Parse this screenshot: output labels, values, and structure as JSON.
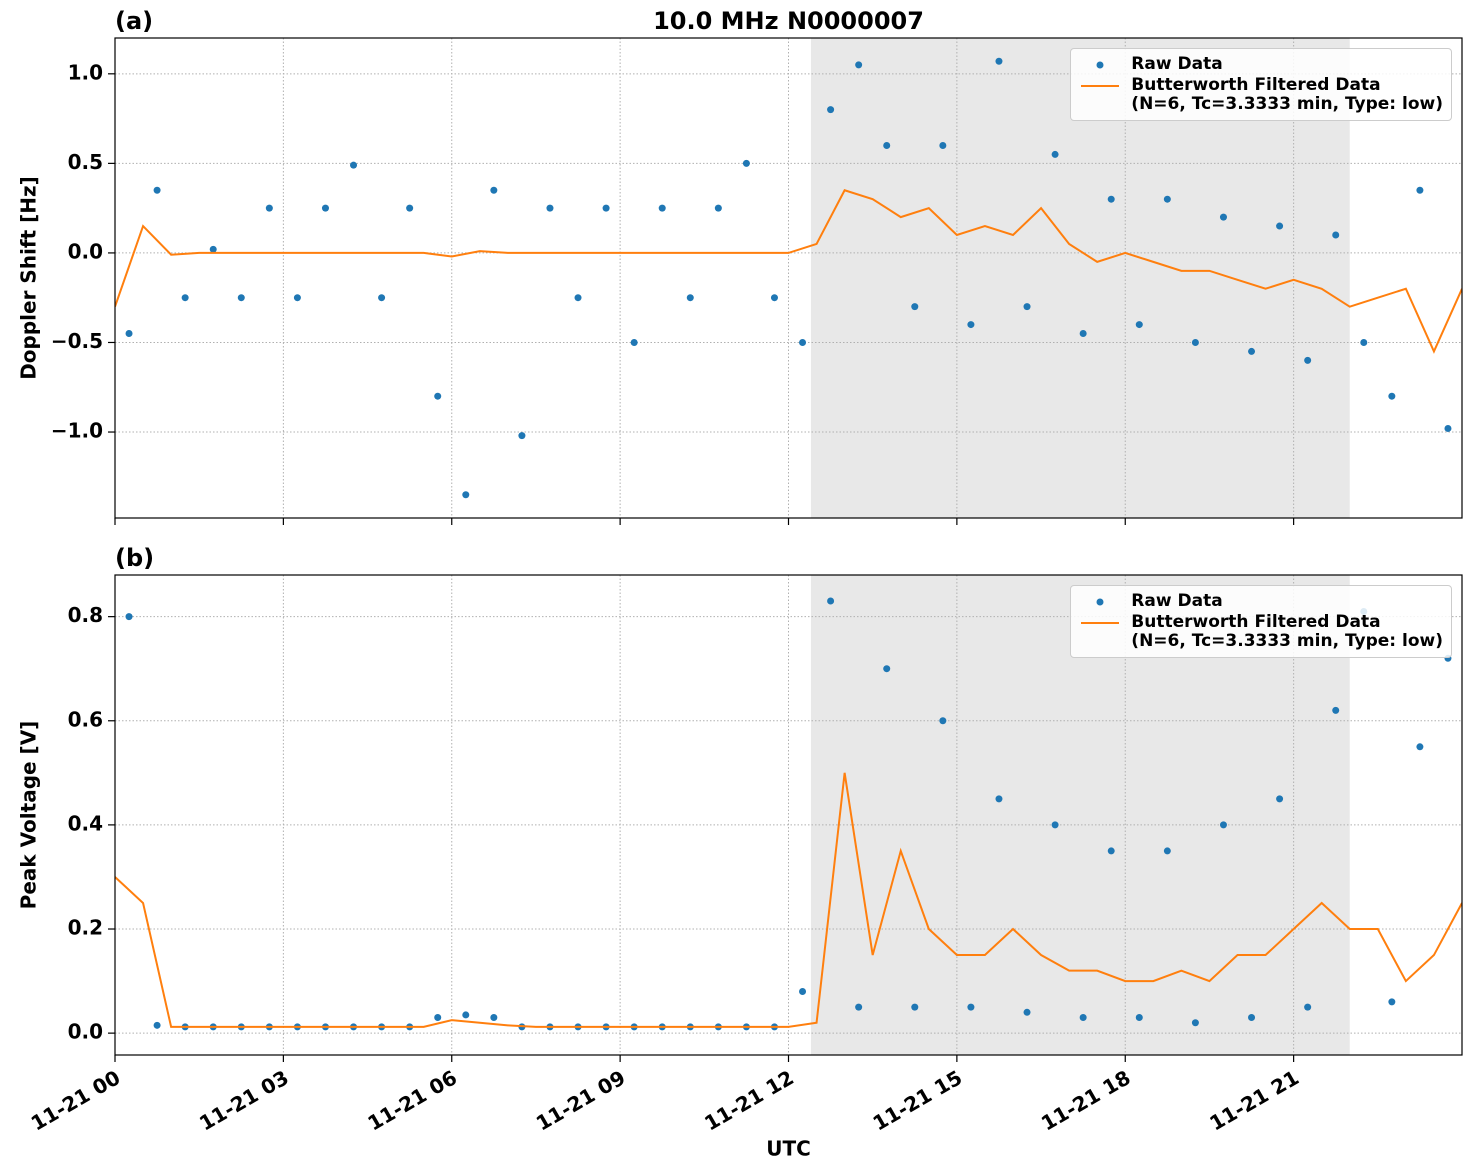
{
  "chart_data": [
    {
      "type": "line",
      "title": "10.0 MHz N0000007",
      "panel_label": "(a)",
      "y_label": "Doppler Shift [Hz]",
      "xlim": [
        0,
        24
      ],
      "xticks": [
        0,
        3,
        6,
        9,
        12,
        15,
        18,
        21
      ],
      "ylim": [
        -1.48,
        1.2
      ],
      "yticks": [
        {
          "value": 1,
          "label": "1.0"
        },
        {
          "value": 0.5,
          "label": "0.5"
        },
        {
          "value": 0,
          "label": "0.0"
        },
        {
          "value": -0.5,
          "label": "−0.5"
        },
        {
          "value": -1,
          "label": "−1.0"
        }
      ],
      "grid": true,
      "legend": "upper right",
      "shaded_span": [
        12.4,
        22.0
      ],
      "span_color": "#e8e8e8",
      "series": [
        {
          "name": "Raw Data",
          "type": "scatter",
          "color": "#1f77b4",
          "x": [
            0.25,
            0.75,
            1.25,
            1.75,
            2.25,
            2.75,
            3.25,
            3.75,
            4.25,
            4.75,
            5.25,
            5.75,
            6.25,
            6.75,
            7.25,
            7.75,
            8.25,
            8.75,
            9.25,
            9.75,
            10.25,
            10.75,
            11.25,
            11.75,
            12.25,
            12.75,
            13.25,
            13.75,
            14.25,
            14.75,
            15.25,
            15.75,
            16.25,
            16.75,
            17.25,
            17.75,
            18.25,
            18.75,
            19.25,
            19.75,
            20.25,
            20.75,
            21.25,
            21.75,
            22.25,
            22.75,
            23.25,
            23.75
          ],
          "values": [
            -0.45,
            0.35,
            -0.25,
            0.02,
            -0.25,
            0.25,
            -0.25,
            0.25,
            0.49,
            -0.25,
            0.25,
            -0.8,
            -1.35,
            0.35,
            -1.02,
            0.25,
            -0.25,
            0.25,
            -0.5,
            0.25,
            -0.25,
            0.25,
            0.5,
            -0.25,
            -0.5,
            0.8,
            1.05,
            0.6,
            -0.3,
            0.6,
            -0.4,
            1.07,
            -0.3,
            0.55,
            -0.45,
            0.3,
            -0.4,
            0.3,
            -0.5,
            0.2,
            -0.55,
            0.15,
            -0.6,
            0.1,
            -0.5,
            -0.8,
            0.35,
            -0.98
          ]
        },
        {
          "name": "Butterworth Filtered Data\n(N=6, Tc=3.3333 min, Type: low)",
          "type": "line",
          "color": "#ff7f0e",
          "x": [
            0,
            0.5,
            1,
            1.5,
            2,
            2.5,
            3,
            3.5,
            4,
            4.5,
            5,
            5.5,
            6,
            6.5,
            7,
            7.5,
            8,
            8.5,
            9,
            9.5,
            10,
            10.5,
            11,
            11.5,
            12,
            12.5,
            13,
            13.5,
            14,
            14.5,
            15,
            15.5,
            16,
            16.5,
            17,
            17.5,
            18,
            18.5,
            19,
            19.5,
            20,
            20.5,
            21,
            21.5,
            22,
            22.5,
            23,
            23.5,
            24
          ],
          "values": [
            -0.3,
            0.15,
            -0.01,
            0,
            0,
            0,
            0,
            0,
            0,
            0,
            0,
            0,
            -0.02,
            0.01,
            0,
            0,
            0,
            0,
            0,
            0,
            0,
            0,
            0,
            0,
            0,
            0.05,
            0.35,
            0.3,
            0.2,
            0.25,
            0.1,
            0.15,
            0.1,
            0.25,
            0.05,
            -0.05,
            0,
            -0.05,
            -0.1,
            -0.1,
            -0.15,
            -0.2,
            -0.15,
            -0.2,
            -0.3,
            -0.25,
            -0.2,
            -0.55,
            -0.2
          ]
        }
      ]
    },
    {
      "type": "line",
      "panel_label": "(b)",
      "y_label": "Peak Voltage [V]",
      "x_label": "UTC",
      "xlim": [
        0,
        24
      ],
      "xticks": [
        {
          "value": 0,
          "label": "11-21 00"
        },
        {
          "value": 3,
          "label": "11-21 03"
        },
        {
          "value": 6,
          "label": "11-21 06"
        },
        {
          "value": 9,
          "label": "11-21 09"
        },
        {
          "value": 12,
          "label": "11-21 12"
        },
        {
          "value": 15,
          "label": "11-21 15"
        },
        {
          "value": 18,
          "label": "11-21 18"
        },
        {
          "value": 21,
          "label": "11-21 21"
        }
      ],
      "ylim": [
        -0.042,
        0.88
      ],
      "yticks": [
        {
          "value": 0,
          "label": "0.0"
        },
        {
          "value": 0.2,
          "label": "0.2"
        },
        {
          "value": 0.4,
          "label": "0.4"
        },
        {
          "value": 0.6,
          "label": "0.6"
        },
        {
          "value": 0.8,
          "label": "0.8"
        }
      ],
      "grid": true,
      "legend": "upper right",
      "shaded_span": [
        12.4,
        22.0
      ],
      "span_color": "#e8e8e8",
      "series": [
        {
          "name": "Raw Data",
          "type": "scatter",
          "color": "#1f77b4",
          "x": [
            0.25,
            0.75,
            1.25,
            1.75,
            2.25,
            2.75,
            3.25,
            3.75,
            4.25,
            4.75,
            5.25,
            5.75,
            6.25,
            6.75,
            7.25,
            7.75,
            8.25,
            8.75,
            9.25,
            9.75,
            10.25,
            10.75,
            11.25,
            11.75,
            12.25,
            12.75,
            13.25,
            13.75,
            14.25,
            14.75,
            15.25,
            15.75,
            16.25,
            16.75,
            17.25,
            17.75,
            18.25,
            18.75,
            19.25,
            19.75,
            20.25,
            20.75,
            21.25,
            21.75,
            22.25,
            22.75,
            23.25,
            23.75
          ],
          "values": [
            0.8,
            0.015,
            0.012,
            0.012,
            0.012,
            0.012,
            0.012,
            0.012,
            0.012,
            0.012,
            0.012,
            0.03,
            0.035,
            0.03,
            0.012,
            0.012,
            0.012,
            0.012,
            0.012,
            0.012,
            0.012,
            0.012,
            0.012,
            0.012,
            0.08,
            0.83,
            0.05,
            0.7,
            0.05,
            0.6,
            0.05,
            0.45,
            0.04,
            0.4,
            0.03,
            0.35,
            0.03,
            0.35,
            0.02,
            0.4,
            0.03,
            0.45,
            0.05,
            0.62,
            0.81,
            0.06,
            0.55,
            0.72
          ]
        },
        {
          "name": "Butterworth Filtered Data\n(N=6, Tc=3.3333 min, Type: low)",
          "type": "line",
          "color": "#ff7f0e",
          "x": [
            0,
            0.5,
            1,
            1.5,
            2,
            2.5,
            3,
            3.5,
            4,
            4.5,
            5,
            5.5,
            6,
            6.5,
            7,
            7.5,
            8,
            8.5,
            9,
            9.5,
            10,
            10.5,
            11,
            11.5,
            12,
            12.5,
            13,
            13.5,
            14,
            14.5,
            15,
            15.5,
            16,
            16.5,
            17,
            17.5,
            18,
            18.5,
            19,
            19.5,
            20,
            20.5,
            21,
            21.5,
            22,
            22.5,
            23,
            23.5,
            24
          ],
          "values": [
            0.3,
            0.25,
            0.012,
            0.012,
            0.012,
            0.012,
            0.012,
            0.012,
            0.012,
            0.012,
            0.012,
            0.012,
            0.025,
            0.02,
            0.015,
            0.012,
            0.012,
            0.012,
            0.012,
            0.012,
            0.012,
            0.012,
            0.012,
            0.012,
            0.012,
            0.02,
            0.5,
            0.15,
            0.35,
            0.2,
            0.15,
            0.15,
            0.2,
            0.15,
            0.12,
            0.12,
            0.1,
            0.1,
            0.12,
            0.1,
            0.15,
            0.15,
            0.2,
            0.25,
            0.2,
            0.2,
            0.1,
            0.15,
            0.25
          ]
        }
      ]
    }
  ]
}
